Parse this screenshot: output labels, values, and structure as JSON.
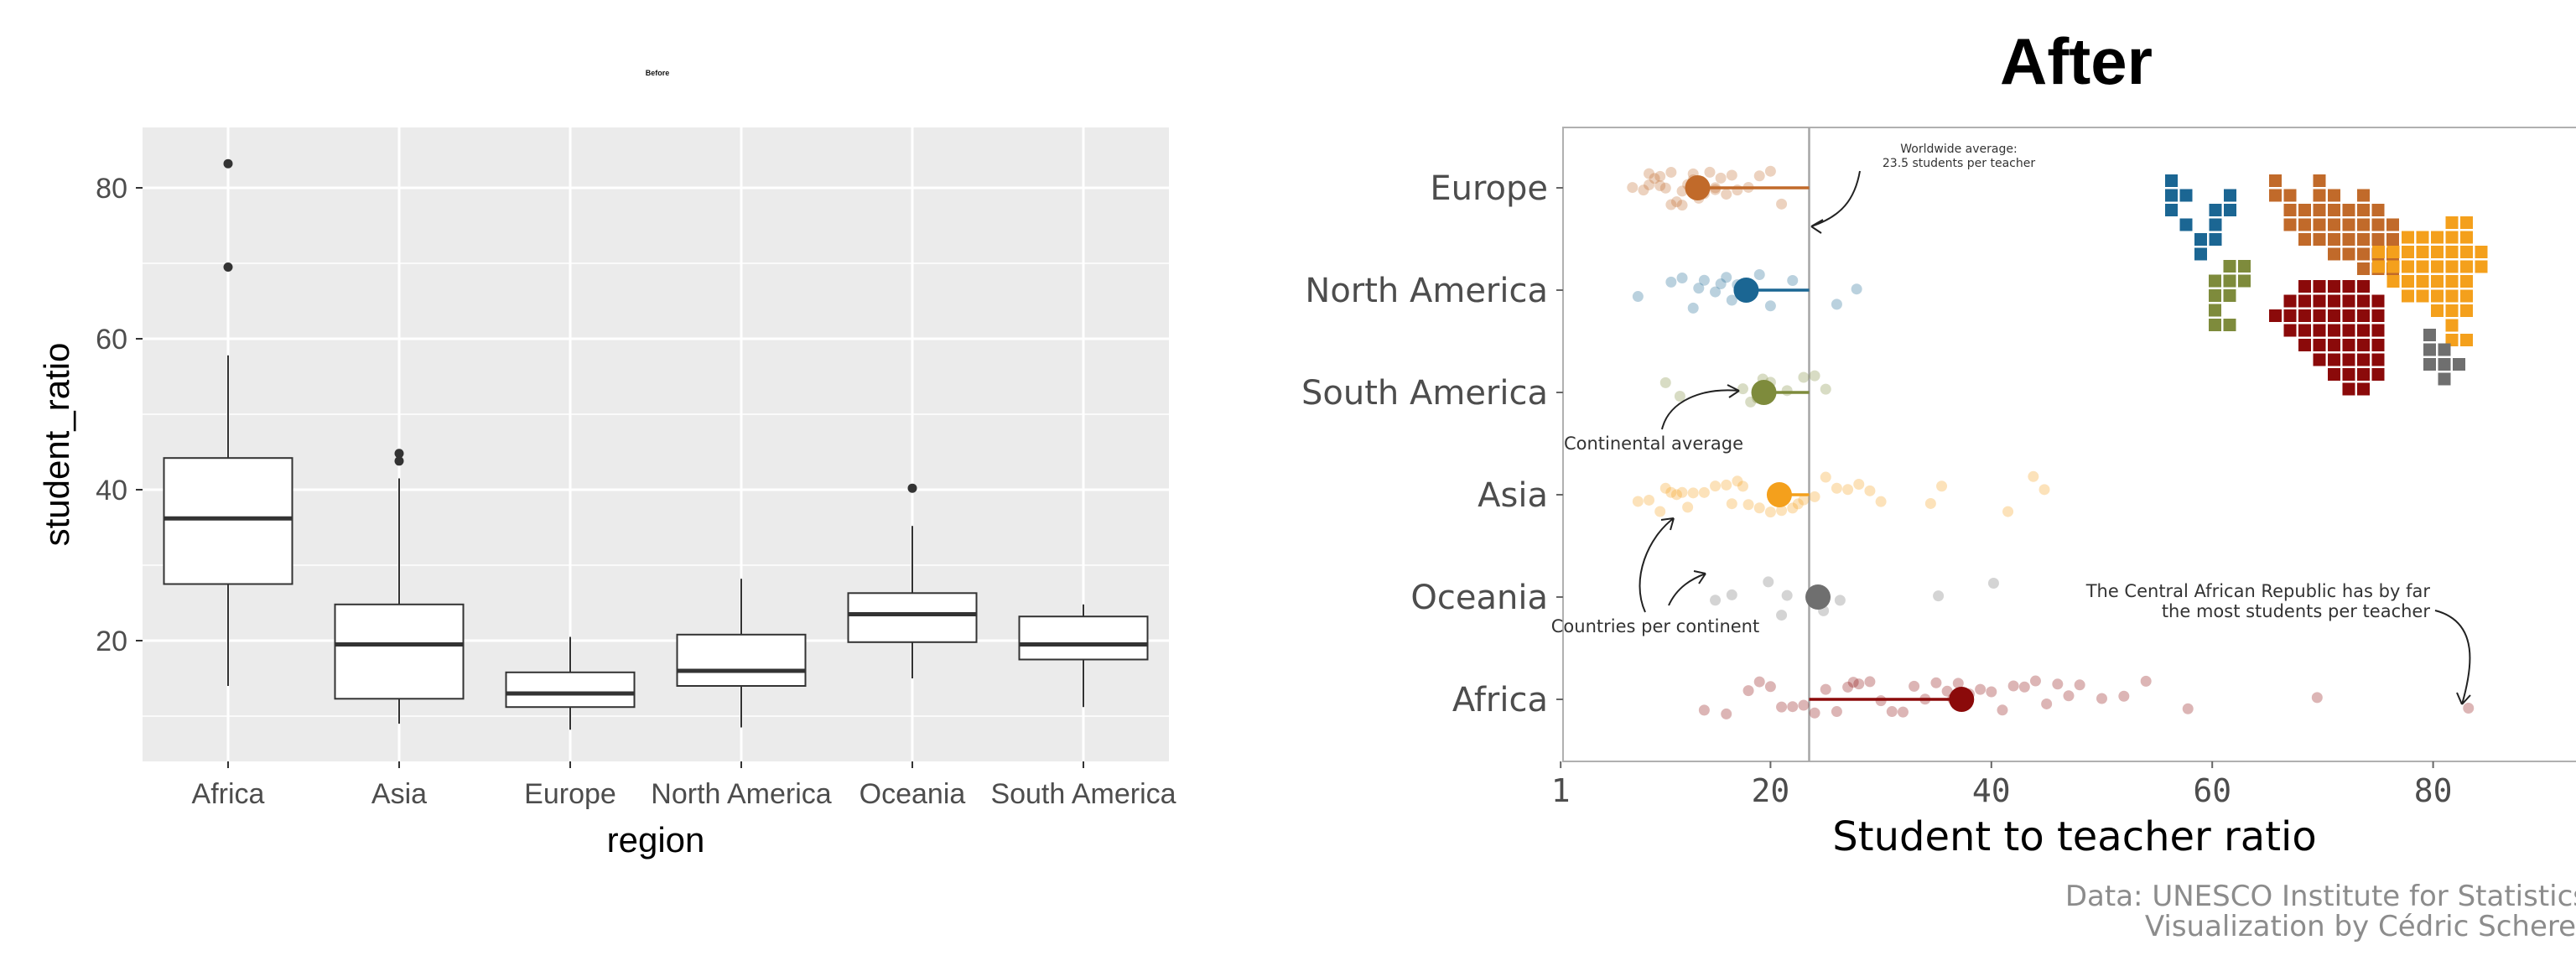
{
  "chart_data": [
    {
      "type": "box",
      "title": "Before",
      "xlabel": "region",
      "ylabel": "student_ratio",
      "ylim": [
        4,
        88
      ],
      "yticks": [
        20,
        40,
        60,
        80
      ],
      "grid": true,
      "background": "#EBEBEB",
      "categories": [
        "Africa",
        "Asia",
        "Europe",
        "North America",
        "Oceania",
        "South America"
      ],
      "boxes": [
        {
          "category": "Africa",
          "min": 14,
          "q1": 27.5,
          "median": 36.2,
          "q3": 44.2,
          "max": 57.8,
          "outliers": [
            69.5,
            83.2
          ]
        },
        {
          "category": "Asia",
          "min": 9,
          "q1": 12.3,
          "median": 19.5,
          "q3": 24.8,
          "max": 41.5,
          "outliers": [
            43.8,
            44.8
          ]
        },
        {
          "category": "Europe",
          "min": 8.2,
          "q1": 11.2,
          "median": 13,
          "q3": 15.8,
          "max": 20.5,
          "outliers": []
        },
        {
          "category": "North America",
          "min": 8.5,
          "q1": 14,
          "median": 16,
          "q3": 20.8,
          "max": 28.2,
          "outliers": []
        },
        {
          "category": "Oceania",
          "min": 15,
          "q1": 19.8,
          "median": 23.5,
          "q3": 26.3,
          "max": 35.2,
          "outliers": [
            40.2
          ]
        },
        {
          "category": "South America",
          "min": 11.2,
          "q1": 17.5,
          "median": 19.5,
          "q3": 23.2,
          "max": 24.8,
          "outliers": []
        }
      ]
    },
    {
      "type": "scatter",
      "title": "After",
      "xlabel": "Student to teacher ratio",
      "ylabel": "",
      "xlim": [
        0,
        90
      ],
      "xticks": [
        1,
        20,
        40,
        60,
        80
      ],
      "categories": [
        "Europe",
        "North America",
        "South America",
        "Asia",
        "Oceania",
        "Africa"
      ],
      "worldwide_average": 23.5,
      "grid": false,
      "series": [
        {
          "category": "Europe",
          "color": "#C16A2A",
          "mean": 13.4,
          "points": [
            7.5,
            8.5,
            9,
            9.5,
            10,
            10.5,
            11,
            11.5,
            12,
            12.5,
            13,
            13.5,
            14,
            14.5,
            15,
            15.5,
            16,
            16.5,
            17,
            18,
            19,
            20,
            21,
            12,
            13,
            14,
            11,
            10,
            9,
            15
          ]
        },
        {
          "category": "North America",
          "color": "#1B6693",
          "mean": 17.8,
          "points": [
            8,
            11,
            12,
            13,
            13.5,
            14,
            15,
            15.5,
            16,
            16.5,
            17,
            18,
            19,
            20,
            22,
            26,
            27.8
          ]
        },
        {
          "category": "South America",
          "color": "#7E8B3C",
          "mean": 19.4,
          "points": [
            10.5,
            11.8,
            17.5,
            18.2,
            18.8,
            19.3,
            20,
            21.5,
            23,
            24,
            25
          ]
        },
        {
          "category": "Asia",
          "color": "#F4A01C",
          "mean": 20.8,
          "points": [
            8,
            9,
            10,
            10.5,
            11,
            11.5,
            12,
            12.5,
            13,
            14,
            15,
            16,
            16.5,
            17,
            17.5,
            18,
            19,
            20,
            21,
            22,
            22.5,
            23,
            24,
            25,
            26,
            27,
            28,
            29,
            30,
            34.5,
            35.5,
            41.5,
            43.8,
            44.8
          ]
        },
        {
          "category": "Oceania",
          "color": "#6F6F6F",
          "mean": 24.3,
          "points": [
            15,
            16.5,
            19.8,
            21,
            21.5,
            24.8,
            26.3,
            35.2,
            40.2
          ]
        },
        {
          "category": "Africa",
          "color": "#8B0A0A",
          "mean": 37.3,
          "points": [
            14,
            16,
            18,
            19,
            20,
            21,
            22,
            23,
            24,
            25,
            26,
            27,
            27.5,
            28,
            29,
            30,
            31,
            32,
            33,
            34,
            35,
            36,
            36.5,
            37,
            38,
            39,
            40,
            41,
            42,
            43,
            44,
            45,
            46,
            47,
            48,
            50,
            52,
            54,
            57.8,
            69.5,
            83.2
          ]
        }
      ],
      "annotations": [
        {
          "lines": [
            "Worldwide average:",
            "23.5 students per teacher"
          ]
        },
        {
          "lines": [
            "Continental average"
          ]
        },
        {
          "lines": [
            "Countries per continent"
          ]
        },
        {
          "lines": [
            "The Central African Republic has by far",
            "the most students per teacher"
          ]
        }
      ]
    }
  ],
  "caption": {
    "line1": "Data: UNESCO Institute for Statistics",
    "line2": "Visualization by Cédric Scherer"
  },
  "map_colors": {
    "europe": "#C16A2A",
    "north_america": "#1B6693",
    "south_america": "#7E8B3C",
    "asia": "#F4A01C",
    "oceania": "#6F6F6F",
    "africa": "#8B0A0A"
  }
}
